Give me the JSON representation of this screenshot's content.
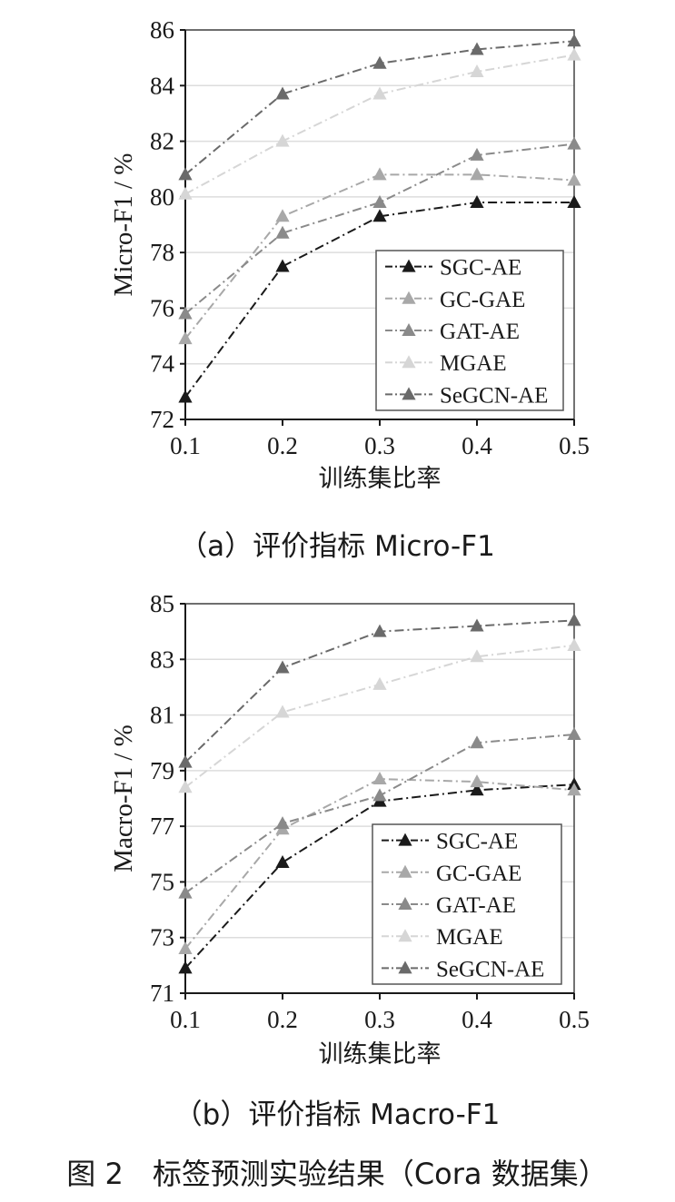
{
  "chart_data": [
    {
      "type": "line",
      "caption": "（a）评价指标 Micro-F1",
      "xlabel": "训练集比率",
      "ylabel": "Micro-F1 / %",
      "x": [
        0.1,
        0.2,
        0.3,
        0.4,
        0.5
      ],
      "x_ticks": [
        "0.1",
        "0.2",
        "0.3",
        "0.4",
        "0.5"
      ],
      "ylim": [
        72,
        86
      ],
      "y_ticks": [
        72,
        74,
        76,
        78,
        80,
        82,
        84,
        86
      ],
      "grid": true,
      "legend_position": "bottom-right",
      "series": [
        {
          "name": "SGC-AE",
          "color": "#1a1a1a",
          "values": [
            72.8,
            77.5,
            79.3,
            79.8,
            79.8
          ]
        },
        {
          "name": "GC-GAE",
          "color": "#a8a8a8",
          "values": [
            74.9,
            79.3,
            80.8,
            80.8,
            80.6
          ]
        },
        {
          "name": "GAT-AE",
          "color": "#8a8a8a",
          "values": [
            75.8,
            78.7,
            79.8,
            81.5,
            81.9
          ]
        },
        {
          "name": "MGAE",
          "color": "#d6d6d6",
          "values": [
            80.1,
            82.0,
            83.7,
            84.5,
            85.1
          ]
        },
        {
          "name": "SeGCN-AE",
          "color": "#6a6a6a",
          "values": [
            80.8,
            83.7,
            84.8,
            85.3,
            85.6
          ]
        }
      ]
    },
    {
      "type": "line",
      "caption": "（b）评价指标 Macro-F1",
      "xlabel": "训练集比率",
      "ylabel": "Macro-F1 / %",
      "x": [
        0.1,
        0.2,
        0.3,
        0.4,
        0.5
      ],
      "x_ticks": [
        "0.1",
        "0.2",
        "0.3",
        "0.4",
        "0.5"
      ],
      "ylim": [
        71,
        85
      ],
      "y_ticks": [
        71,
        73,
        75,
        77,
        79,
        81,
        83,
        85
      ],
      "grid": true,
      "legend_position": "bottom-right",
      "series": [
        {
          "name": "SGC-AE",
          "color": "#1a1a1a",
          "values": [
            71.9,
            75.7,
            77.9,
            78.3,
            78.5
          ]
        },
        {
          "name": "GC-GAE",
          "color": "#a8a8a8",
          "values": [
            72.6,
            76.9,
            78.7,
            78.6,
            78.3
          ]
        },
        {
          "name": "GAT-AE",
          "color": "#8a8a8a",
          "values": [
            74.6,
            77.1,
            78.1,
            80.0,
            80.3
          ]
        },
        {
          "name": "MGAE",
          "color": "#d6d6d6",
          "values": [
            78.4,
            81.1,
            82.1,
            83.1,
            83.5
          ]
        },
        {
          "name": "SeGCN-AE",
          "color": "#6a6a6a",
          "values": [
            79.3,
            82.7,
            84.0,
            84.2,
            84.4
          ]
        }
      ]
    }
  ],
  "figure_caption": "图 2　标签预测实验结果（Cora 数据集）"
}
